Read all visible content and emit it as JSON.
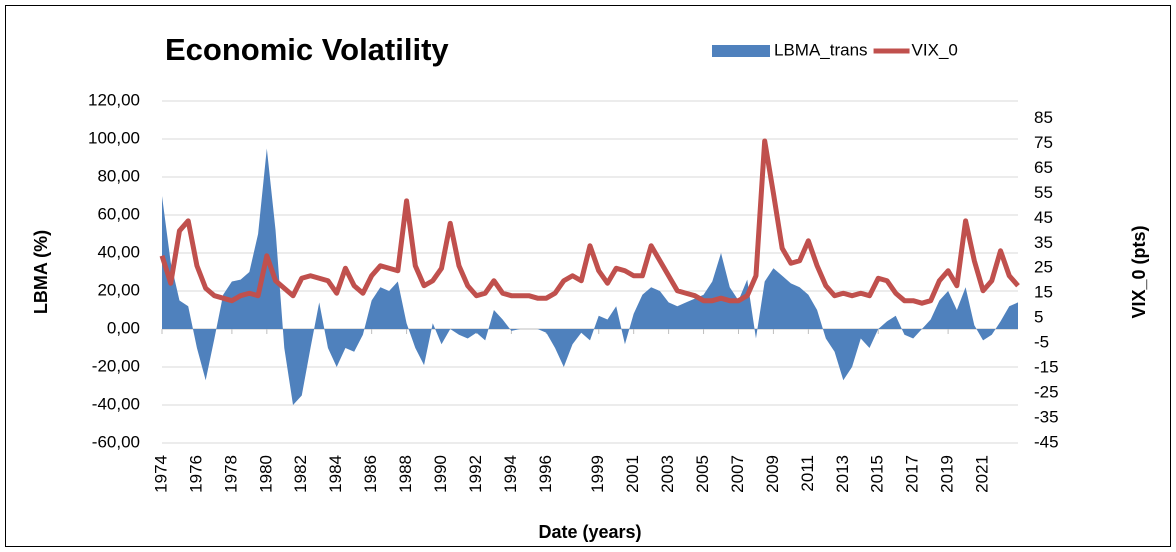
{
  "chart_data": {
    "type": "area-line",
    "title": "Economic Volatility",
    "x_label": "Date (years)",
    "y_label": "LBMA (%)",
    "y2_label": "VIX_0 (pts)",
    "legend": "top-right",
    "grid": true,
    "xlim": [
      1974,
      2023
    ],
    "xticks": [
      1974,
      1976,
      1978,
      1980,
      1982,
      1984,
      1986,
      1988,
      1990,
      1992,
      1994,
      1996,
      1999,
      2001,
      2003,
      2005,
      2007,
      2009,
      2011,
      2013,
      2015,
      2017,
      2019,
      2021
    ],
    "ylim": [
      -60,
      120
    ],
    "yticks": [
      {
        "value": -60,
        "label": "-60,00"
      },
      {
        "value": -40,
        "label": "-40,00"
      },
      {
        "value": -20,
        "label": "-20,00"
      },
      {
        "value": 0,
        "label": "0,00"
      },
      {
        "value": 20,
        "label": "20,00"
      },
      {
        "value": 40,
        "label": "40,00"
      },
      {
        "value": 60,
        "label": "60,00"
      },
      {
        "value": 80,
        "label": "80,00"
      },
      {
        "value": 100,
        "label": "100,00"
      },
      {
        "value": 120,
        "label": "120,00"
      }
    ],
    "y2lim": [
      -45,
      92
    ],
    "y2ticks": [
      -45,
      -35,
      -25,
      -15,
      -5,
      5,
      15,
      25,
      35,
      45,
      55,
      65,
      75,
      85
    ],
    "x": [
      1974,
      1974.5,
      1975,
      1975.5,
      1976,
      1976.5,
      1977,
      1977.5,
      1978,
      1978.5,
      1979,
      1979.5,
      1980,
      1980.5,
      1981,
      1981.5,
      1982,
      1982.5,
      1983,
      1983.5,
      1984,
      1984.5,
      1985,
      1985.5,
      1986,
      1986.5,
      1987,
      1987.5,
      1988,
      1988.5,
      1989,
      1989.5,
      1990,
      1990.5,
      1991,
      1991.5,
      1992,
      1992.5,
      1993,
      1993.5,
      1994,
      1994.5,
      1995,
      1995.5,
      1996,
      1996.5,
      1997,
      1997.5,
      1998,
      1998.5,
      1999,
      1999.5,
      2000,
      2000.5,
      2001,
      2001.5,
      2002,
      2002.5,
      2003,
      2003.5,
      2004,
      2004.5,
      2005,
      2005.5,
      2006,
      2006.5,
      2007,
      2007.5,
      2008,
      2008.5,
      2009,
      2009.5,
      2010,
      2010.5,
      2011,
      2011.5,
      2012,
      2012.5,
      2013,
      2013.5,
      2014,
      2014.5,
      2015,
      2015.5,
      2016,
      2016.5,
      2017,
      2017.5,
      2018,
      2018.5,
      2019,
      2019.5,
      2020,
      2020.5,
      2021,
      2021.5,
      2022,
      2022.5,
      2023
    ],
    "series": [
      {
        "name": "LBMA_trans",
        "color": "#4f81bd",
        "kind": "area",
        "values": [
          70,
          35,
          15,
          12,
          -10,
          -27,
          -5,
          18,
          25,
          26,
          30,
          50,
          95,
          52,
          -10,
          -40,
          -35,
          -10,
          14,
          -10,
          -20,
          -10,
          -12,
          -3,
          15,
          22,
          20,
          25,
          3,
          -10,
          -19,
          3,
          -8,
          0,
          -3,
          -5,
          -2,
          -6,
          10,
          5,
          -1,
          0,
          0,
          0,
          -2,
          -10,
          -20,
          -8,
          -2,
          -6,
          7,
          5,
          12,
          -8,
          8,
          18,
          22,
          20,
          14,
          12,
          14,
          16,
          18,
          25,
          40,
          22,
          15,
          26,
          -5,
          25,
          32,
          28,
          24,
          22,
          18,
          10,
          -5,
          -12,
          -27,
          -20,
          -5,
          -10,
          0,
          4,
          7,
          -3,
          -5,
          0,
          5,
          15,
          20,
          10,
          22,
          2,
          -6,
          -3,
          4,
          12,
          14
        ]
      },
      {
        "name": "VIX_0",
        "color": "#c0504d",
        "kind": "line",
        "axis": "y2",
        "values": [
          30,
          19,
          40,
          44,
          26,
          17,
          14,
          13,
          12,
          14,
          15,
          14,
          30,
          20,
          17,
          14,
          21,
          22,
          21,
          20,
          15,
          25,
          18,
          15,
          22,
          26,
          25,
          24,
          52,
          26,
          18,
          20,
          25,
          43,
          26,
          18,
          14,
          15,
          20,
          15,
          14,
          14,
          14,
          13,
          13,
          15,
          20,
          22,
          20,
          34,
          24,
          19,
          25,
          24,
          22,
          22,
          34,
          28,
          22,
          16,
          15,
          14,
          12,
          12,
          13,
          12,
          12,
          14,
          22,
          76,
          55,
          33,
          27,
          28,
          36,
          26,
          18,
          14,
          15,
          14,
          15,
          14,
          21,
          20,
          15,
          12,
          12,
          11,
          12,
          20,
          24,
          18,
          44,
          28,
          16,
          20,
          32,
          22,
          18
        ]
      }
    ]
  }
}
